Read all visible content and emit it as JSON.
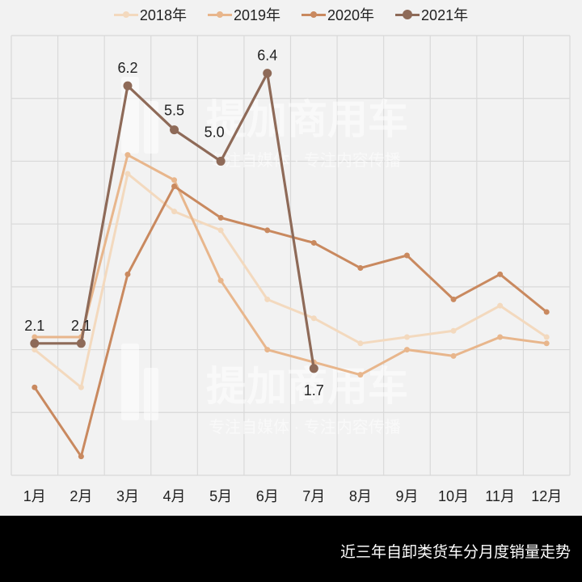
{
  "chart_data": {
    "type": "line",
    "title": "近三年自卸类货车分月度销量走势",
    "xlabel": "",
    "ylabel": "",
    "categories": [
      "1月",
      "2月",
      "3月",
      "4月",
      "5月",
      "6月",
      "7月",
      "8月",
      "9月",
      "10月",
      "11月",
      "12月"
    ],
    "ylim": [
      0,
      7
    ],
    "grid": true,
    "y_tick_labels_visible": false,
    "legend_position": "top",
    "series": [
      {
        "name": "2018年",
        "color": "#F3D9BE",
        "values": [
          2.0,
          1.4,
          4.8,
          4.2,
          3.9,
          2.8,
          2.5,
          2.1,
          2.2,
          2.3,
          2.7,
          2.2
        ]
      },
      {
        "name": "2019年",
        "color": "#E8B68C",
        "values": [
          2.2,
          2.2,
          5.1,
          4.7,
          3.1,
          2.0,
          1.8,
          1.6,
          2.0,
          1.9,
          2.2,
          2.1
        ]
      },
      {
        "name": "2020年",
        "color": "#C9895F",
        "values": [
          1.4,
          0.3,
          3.2,
          4.6,
          4.1,
          3.9,
          3.7,
          3.3,
          3.5,
          2.8,
          3.2,
          2.6
        ]
      },
      {
        "name": "2021年",
        "color": "#8E6A58",
        "values": [
          2.1,
          2.1,
          6.2,
          5.5,
          5.0,
          6.4,
          1.7,
          null,
          null,
          null,
          null,
          null
        ],
        "data_labels": [
          "2.1",
          "2.1",
          "6.2",
          "5.5",
          "5.0",
          "6.4",
          "1.7"
        ]
      }
    ],
    "annotations": []
  },
  "watermark": {
    "title": "提加商用车",
    "subtitle": "专注自媒体 · 专注内容传播"
  },
  "caption": "近三年自卸类货车分月度销量走势"
}
